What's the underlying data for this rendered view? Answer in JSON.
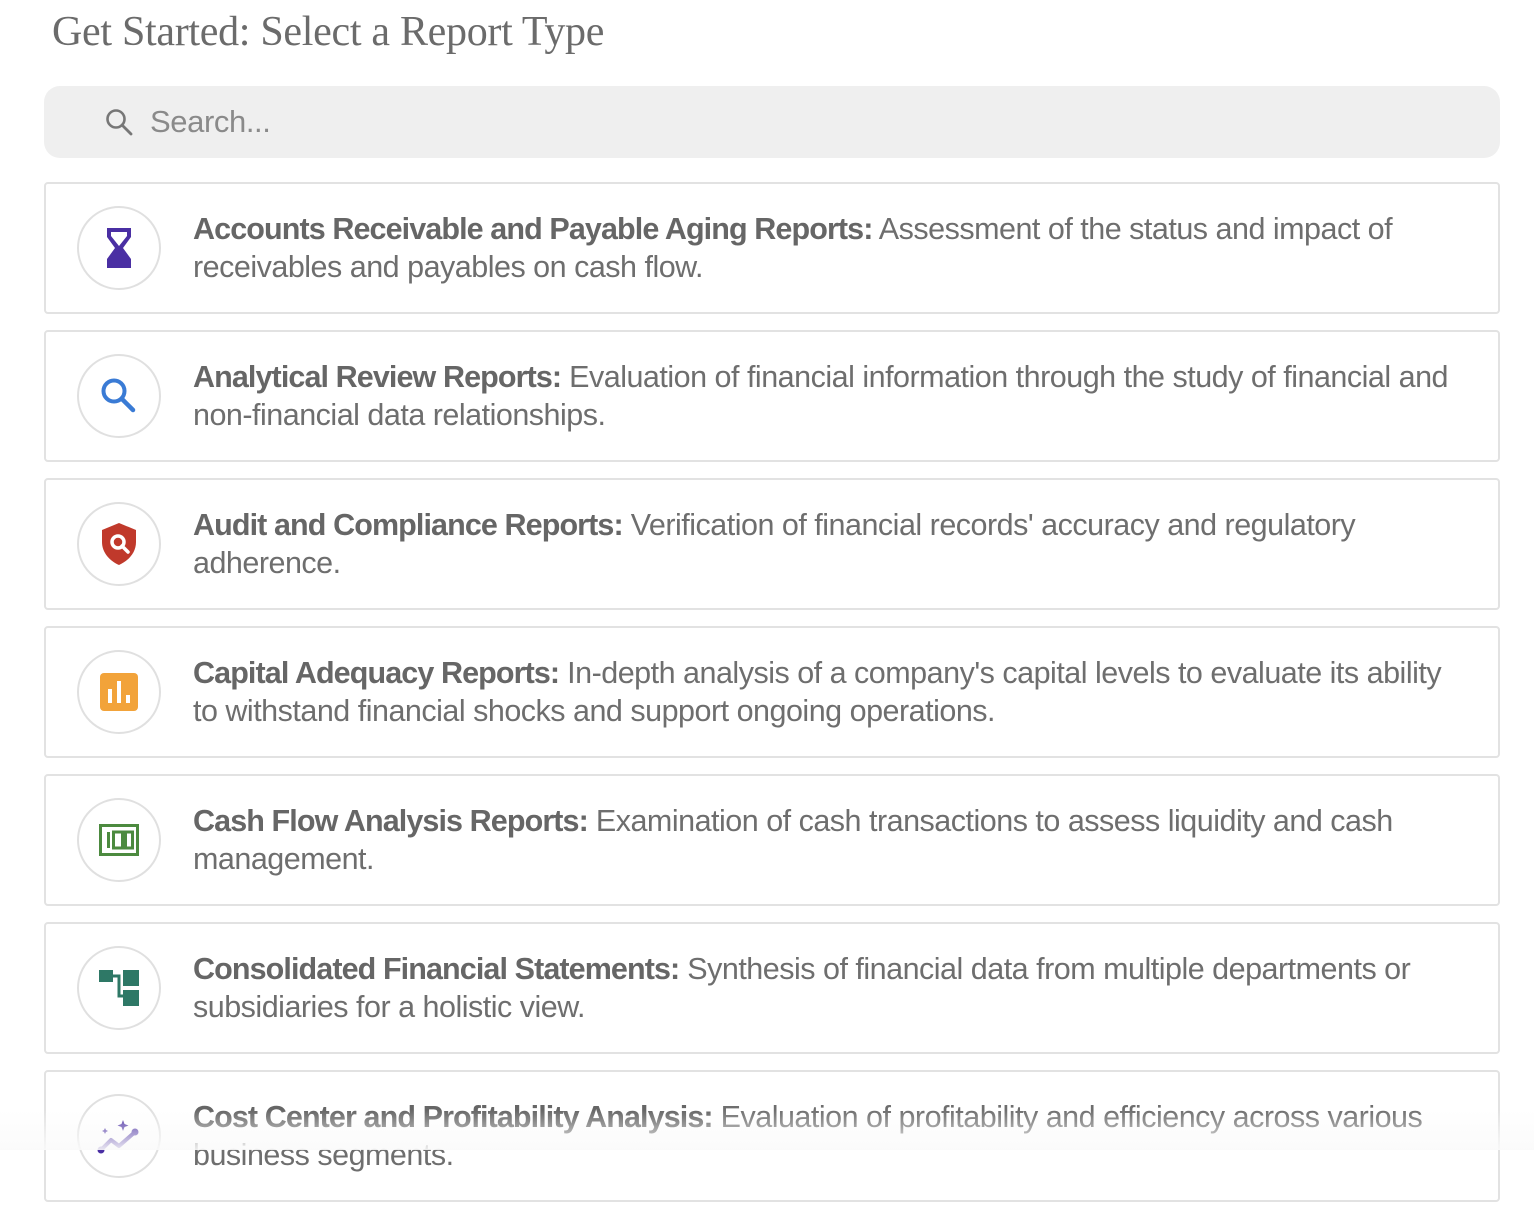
{
  "header": {
    "title": "Get Started: Select a Report Type"
  },
  "search": {
    "placeholder": "Search...",
    "value": "",
    "icon": "search-icon"
  },
  "reports": [
    {
      "name": "Accounts Receivable and Payable Aging Reports:",
      "description": "Assessment of the status and impact of receivables and payables on cash flow.",
      "icon": "hourglass-icon",
      "color": "#4a2fa3"
    },
    {
      "name": "Analytical Review Reports:",
      "description": "Evaluation of financial information through the study of financial and non-financial data relationships.",
      "icon": "magnifier-icon",
      "color": "#3a7bd5"
    },
    {
      "name": "Audit and Compliance Reports:",
      "description": "Verification of financial records' accuracy and regulatory adherence.",
      "icon": "shield-search-icon",
      "color": "#c0392b"
    },
    {
      "name": "Capital Adequacy Reports:",
      "description": "In-depth analysis of a company's capital levels to evaluate its ability to withstand financial shocks and support ongoing operations.",
      "icon": "bar-chart-icon",
      "color": "#f2a33a"
    },
    {
      "name": "Cash Flow Analysis Reports:",
      "description": "Examination of cash transactions to assess liquidity and cash management.",
      "icon": "money-bill-icon",
      "color": "#4c8a3f"
    },
    {
      "name": "Consolidated Financial Statements:",
      "description": "Synthesis of financial data from multiple departments or subsidiaries for a holistic view.",
      "icon": "hierarchy-icon",
      "color": "#2e7866"
    },
    {
      "name": "Cost Center and Profitability Analysis:",
      "description": "Evaluation of profitability and efficiency across various business segments.",
      "icon": "sparkle-trend-icon",
      "color": "#4a2fa3"
    }
  ]
}
